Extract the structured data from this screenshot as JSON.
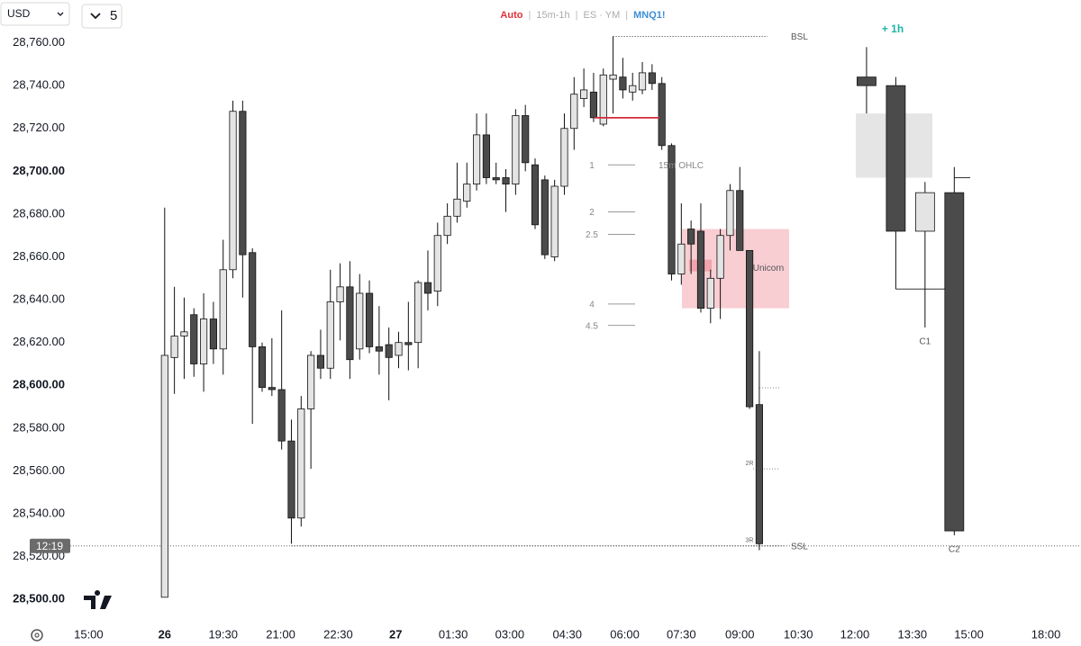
{
  "chart_data": {
    "type": "candlestick",
    "currency": "USD",
    "interval": "5",
    "header": {
      "mode": "Auto",
      "separator": "|",
      "timeframes": "15m-1h",
      "symbols": "ES · YM",
      "symbol": "MNQ1!"
    },
    "open": [
      28501,
      28613,
      28623,
      28633,
      28610,
      28631,
      28617,
      28654,
      28728,
      28662,
      28618,
      28599,
      28598,
      28574,
      28538,
      28589,
      28614,
      28608,
      28639,
      28646,
      28617,
      28643,
      28618,
      28619,
      28614,
      28620,
      28620,
      28648,
      28644,
      28670,
      28679,
      28686,
      28694,
      28717,
      28697,
      28697,
      28694,
      28726,
      28703,
      28696,
      28660,
      28693,
      28720,
      28734,
      28737,
      28722,
      28743,
      28744,
      28737,
      28738,
      28746,
      28741,
      28712,
      28652,
      28673,
      28672,
      28636,
      28650,
      28670,
      28691,
      28663,
      28591
    ],
    "high": [
      28683,
      28646,
      28641,
      28636,
      28643,
      28639,
      28668,
      28733,
      28733,
      28664,
      28620,
      28622,
      28635,
      28584,
      28595,
      28616,
      28626,
      28654,
      28657,
      28658,
      28652,
      28649,
      28637,
      28627,
      28625,
      28639,
      28649,
      28663,
      28676,
      28685,
      28704,
      28704,
      28727,
      28727,
      28704,
      28701,
      28729,
      28731,
      28706,
      28698,
      28696,
      28727,
      28744,
      28748,
      28746,
      28748,
      28763,
      28753,
      28746,
      28751,
      28750,
      28744,
      28713,
      28685,
      28677,
      28685,
      28654,
      28673,
      28694,
      28702,
      28663,
      28616
    ],
    "low": [
      28501,
      28596,
      28603,
      28604,
      28597,
      28610,
      28605,
      28650,
      28641,
      28582,
      28597,
      28595,
      28570,
      28526,
      28534,
      28561,
      28603,
      28603,
      28621,
      28603,
      28612,
      28615,
      28605,
      28593,
      28608,
      28607,
      28608,
      28635,
      28637,
      28666,
      28676,
      28683,
      28691,
      28694,
      28694,
      28681,
      28689,
      28700,
      28673,
      28659,
      28658,
      28689,
      28710,
      28730,
      28723,
      28721,
      28727,
      28734,
      28733,
      28736,
      28738,
      28710,
      28649,
      28647,
      28652,
      28634,
      28629,
      28631,
      28663,
      28663,
      28589,
      28523
    ],
    "close": [
      28614,
      28623,
      28625,
      28610,
      28631,
      28617,
      28654,
      28728,
      28661,
      28618,
      28599,
      28598,
      28574,
      28538,
      28589,
      28614,
      28608,
      28639,
      28646,
      28612,
      28643,
      28618,
      28616,
      28613,
      28620,
      28619,
      28648,
      28643,
      28670,
      28679,
      28687,
      28694,
      28717,
      28697,
      28696,
      28694,
      28726,
      28704,
      28675,
      28661,
      28693,
      28720,
      28736,
      28738,
      28725,
      28745,
      28745,
      28738,
      28740,
      28746,
      28741,
      28712,
      28652,
      28666,
      28666,
      28636,
      28650,
      28670,
      28691,
      28663,
      28590,
      28526
    ],
    "up_color": "#e4e4e4",
    "down_color": "#4b4b4b",
    "ylim": [
      28490,
      28780
    ],
    "yticks": [
      {
        "value": 28500,
        "label": "28,500.00"
      },
      {
        "value": 28520,
        "label": "28,520.00"
      },
      {
        "value": 28540,
        "label": "28,540.00"
      },
      {
        "value": 28560,
        "label": "28,560.00"
      },
      {
        "value": 28580,
        "label": "28,580.00"
      },
      {
        "value": 28600,
        "label": "28,600.00"
      },
      {
        "value": 28620,
        "label": "28,620.00"
      },
      {
        "value": 28640,
        "label": "28,640.00"
      },
      {
        "value": 28660,
        "label": "28,660.00"
      },
      {
        "value": 28680,
        "label": "28,680.00"
      },
      {
        "value": 28700,
        "label": "28,700.00"
      },
      {
        "value": 28720,
        "label": "28,720.00"
      },
      {
        "value": 28740,
        "label": "28,740.00"
      },
      {
        "value": 28760,
        "label": "28,760.00"
      }
    ],
    "xlim": [
      -9.5,
      94
    ],
    "xticks": [
      {
        "value": -7.8,
        "label": "15:00"
      },
      {
        "value": 0,
        "label": "26"
      },
      {
        "value": 6,
        "label": "19:30"
      },
      {
        "value": 11.9,
        "label": "21:00"
      },
      {
        "value": 17.8,
        "label": "22:30"
      },
      {
        "value": 23.7,
        "label": "27"
      },
      {
        "value": 29.6,
        "label": "01:30"
      },
      {
        "value": 35.4,
        "label": "03:00"
      },
      {
        "value": 41.3,
        "label": "04:30"
      },
      {
        "value": 47.2,
        "label": "06:00"
      },
      {
        "value": 53,
        "label": "07:30"
      },
      {
        "value": 59,
        "label": "09:00"
      },
      {
        "value": 65,
        "label": "10:30"
      },
      {
        "value": 70.8,
        "label": "12:00"
      },
      {
        "value": 76.7,
        "label": "13:30"
      },
      {
        "value": 82.5,
        "label": "15:00"
      },
      {
        "value": 90.4,
        "label": "18:00"
      }
    ],
    "htf": {
      "label": "+ 1h",
      "open": [
        28744,
        28740,
        28672,
        28690
      ],
      "high": [
        28758,
        28744,
        28695,
        28702
      ],
      "low": [
        28727,
        28645,
        28627,
        28530
      ],
      "close": [
        28740,
        28672,
        28690,
        28532
      ],
      "candle_labels": [
        null,
        null,
        "C1",
        "C2"
      ],
      "range_box": [
        28727,
        28697
      ]
    },
    "levels": [
      {
        "label": "BSL",
        "value": 28763
      },
      {
        "label": "SSL",
        "value": 28525
      }
    ],
    "fib_levels": [
      {
        "label": "1",
        "value": 28703
      },
      {
        "label": "2",
        "value": 28681
      },
      {
        "label": "2.5",
        "value": 28670.5
      },
      {
        "label": "4",
        "value": 28638
      },
      {
        "label": "4.5",
        "value": 28628
      }
    ],
    "ohlc_label": {
      "label": "15m OHLC",
      "value": 28703
    },
    "unicorn": {
      "label": "Unicorn",
      "top": 28673,
      "bottom": 28636
    },
    "red_line": 28725,
    "r_levels": [
      {
        "label": "2R",
        "value": 28561
      },
      {
        "label": "3R",
        "value": 28525
      }
    ],
    "current_price": {
      "label": "12:19",
      "value": 28525
    }
  }
}
